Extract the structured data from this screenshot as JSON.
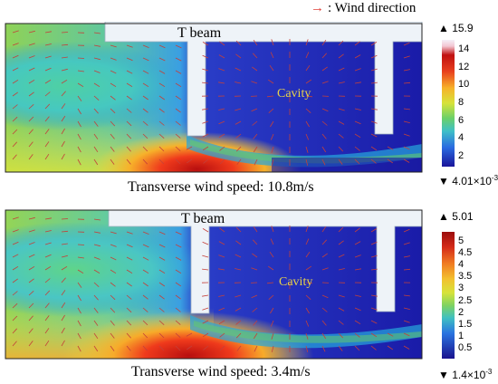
{
  "legend": {
    "arrow_symbol": "→",
    "text": ": Wind direction",
    "arrow_color": "#e0403a"
  },
  "panels": [
    {
      "beam_label": "T beam",
      "cavity_label": "Cavity",
      "caption": "Transverse wind speed: 10.8m/s",
      "scale_max": "▲ 15.9",
      "scale_min": "▼ 4.01×10",
      "scale_min_exp": "-3",
      "ticks": [
        "14",
        "12",
        "10",
        "8",
        "6",
        "4",
        "2"
      ]
    },
    {
      "beam_label": "T beam",
      "cavity_label": "Cavity",
      "caption": "Transverse wind speed: 3.4m/s",
      "scale_max": "▲ 5.01",
      "scale_min": "▼ 1.4×10",
      "scale_min_exp": "-3",
      "ticks": [
        "5",
        "4.5",
        "4",
        "3.5",
        "3",
        "2.5",
        "2",
        "1.5",
        "1",
        "0.5"
      ]
    }
  ],
  "colors": {
    "beam": "#eef3f8",
    "arrow": "#c4403a",
    "cavity_text": "#e8d24a"
  }
}
